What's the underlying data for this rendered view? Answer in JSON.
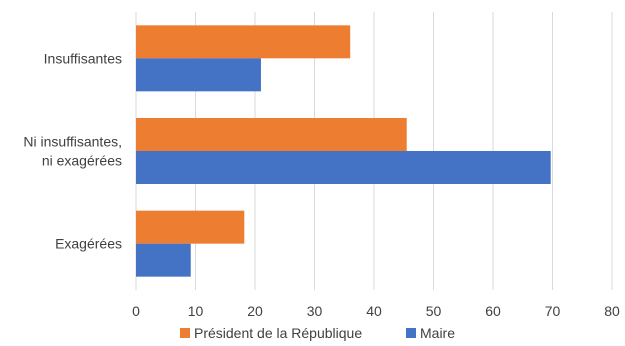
{
  "chart_data": {
    "type": "bar",
    "orientation": "horizontal",
    "categories": [
      [
        "Insuffisantes"
      ],
      [
        "Ni insuffisantes,",
        "ni exagérées"
      ],
      [
        "Exagérées"
      ]
    ],
    "series": [
      {
        "name": "Président de la République",
        "color": "#ED7D31",
        "values": [
          36,
          45.5,
          18.2
        ]
      },
      {
        "name": "Maire",
        "color": "#4472C4",
        "values": [
          21,
          69.7,
          9.2
        ]
      }
    ],
    "xlim": [
      0,
      80
    ],
    "xticks": [
      "0",
      "10",
      "20",
      "30",
      "40",
      "50",
      "60",
      "70",
      "80"
    ],
    "grid": true,
    "legend": "bottom"
  }
}
